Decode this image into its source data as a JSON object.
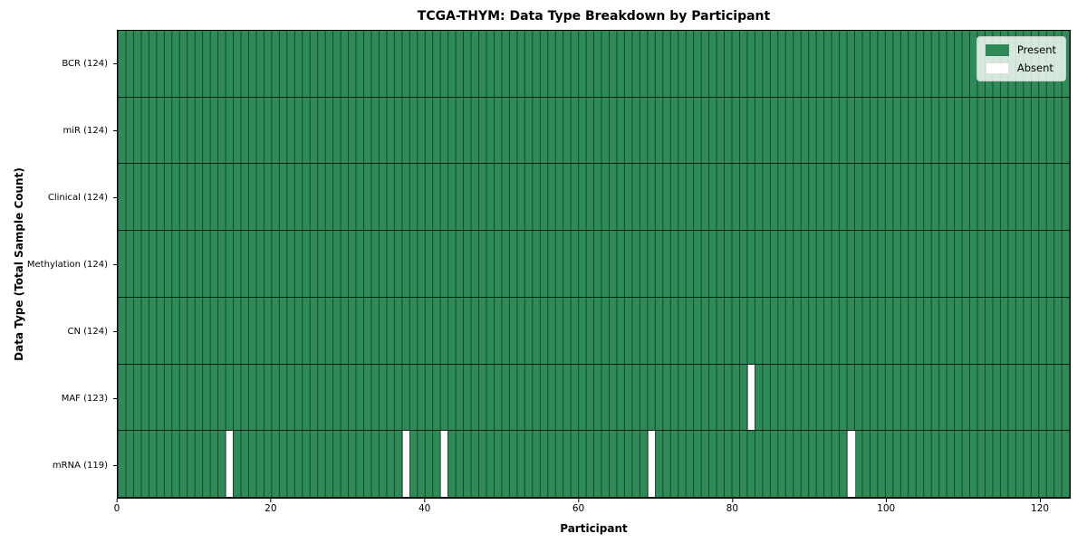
{
  "chart_data": {
    "type": "heatmap",
    "title": "TCGA-THYM: Data Type Breakdown by Participant",
    "xlabel": "Participant",
    "ylabel": "Data Type (Total Sample Count)",
    "xlim": [
      0,
      124
    ],
    "x_ticks": [
      0,
      20,
      40,
      60,
      80,
      100,
      120
    ],
    "n_participants": 124,
    "grid": "cell-edges",
    "legend_position": "upper-right",
    "colors": {
      "present": "#2e8b57",
      "absent": "#ffffff",
      "cell_edge": "rgba(0,0,0,0.5)",
      "row_edge": "rgba(0,0,0,0.78)",
      "axes_edge": "#000000"
    },
    "rows": [
      {
        "label": "BCR (124)",
        "data_type": "BCR",
        "total": 124,
        "absent_participants": []
      },
      {
        "label": "miR (124)",
        "data_type": "miR",
        "total": 124,
        "absent_participants": []
      },
      {
        "label": "Clinical (124)",
        "data_type": "Clinical",
        "total": 124,
        "absent_participants": []
      },
      {
        "label": "Methylation (124)",
        "data_type": "Methylation",
        "total": 124,
        "absent_participants": []
      },
      {
        "label": "CN (124)",
        "data_type": "CN",
        "total": 124,
        "absent_participants": []
      },
      {
        "label": "MAF (123)",
        "data_type": "MAF",
        "total": 123,
        "absent_participants": [
          82
        ]
      },
      {
        "label": "mRNA (119)",
        "data_type": "mRNA",
        "total": 119,
        "absent_participants": [
          14,
          37,
          42,
          69,
          95
        ]
      }
    ],
    "legend": [
      {
        "label": "Present",
        "color": "#2e8b57",
        "kind": "present"
      },
      {
        "label": "Absent",
        "color": "#ffffff",
        "kind": "absent"
      }
    ]
  }
}
